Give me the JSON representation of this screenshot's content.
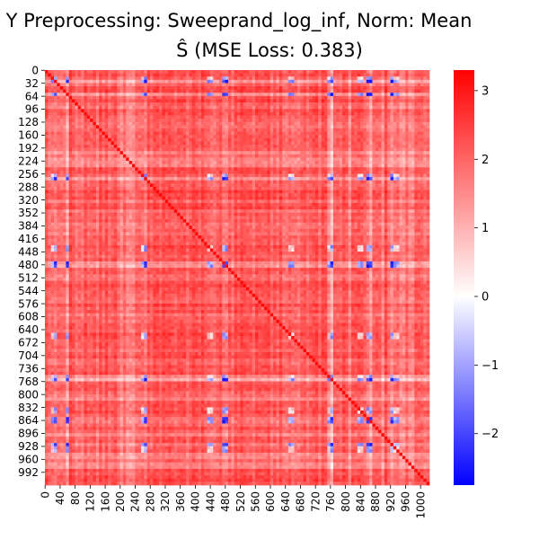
{
  "chart_data": {
    "type": "heatmap",
    "title_line1": "Y Preprocessing: Sweeprand_log_inf, Norm: Mean",
    "title_line2": "Ŝ (MSE Loss: 0.383)",
    "size": 1024,
    "y_ticks": [
      0,
      32,
      64,
      96,
      128,
      160,
      192,
      224,
      256,
      288,
      320,
      352,
      384,
      416,
      448,
      480,
      512,
      544,
      576,
      608,
      640,
      672,
      704,
      736,
      768,
      800,
      832,
      864,
      896,
      928,
      960,
      992
    ],
    "x_ticks": [
      0,
      40,
      80,
      120,
      160,
      200,
      240,
      280,
      320,
      360,
      400,
      440,
      480,
      520,
      560,
      600,
      640,
      680,
      720,
      760,
      800,
      840,
      880,
      920,
      960,
      1000
    ],
    "colorbar": {
      "min": -2.75,
      "max": 3.3,
      "ticks": [
        -2,
        -1,
        0,
        1,
        2,
        3
      ],
      "colormap": "bwr",
      "colors": [
        "#0000ff",
        "#ffffff",
        "#ff0000"
      ]
    },
    "baseline_value": 2.1,
    "negative_bands": [
      20,
      58,
      265,
      440,
      655,
      760,
      840,
      860,
      930,
      940
    ],
    "strong_negative_rows": [
      28,
      60,
      268,
      480,
      765,
      864,
      925
    ],
    "light_rows": [
      204,
      224,
      236,
      760,
      810,
      900,
      952,
      975
    ]
  }
}
